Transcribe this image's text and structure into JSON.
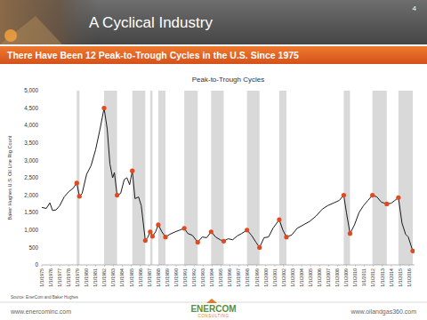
{
  "slide": {
    "title": "A Cyclical Industry",
    "page_number": "4",
    "subtitle": "There Have Been 12 Peak-to-Trough Cycles in the U.S. Since 1975",
    "source": "Source: EnerCom and Baker Hughes",
    "footer_left": "www.enercominc.com",
    "footer_right": "www.oilandgas360.com",
    "logo": "ENERCOM",
    "logo_sub": "CONSULTING"
  },
  "chart_data": {
    "type": "line",
    "title": "Peak-to-Trough Cycles",
    "y_label": "Baker Hughes U.S. Oil Line Rig Count",
    "x": [
      1975.0,
      1975.5,
      1975.9,
      1976.2,
      1976.6,
      1977.0,
      1977.5,
      1978.0,
      1978.5,
      1978.9,
      1979.2,
      1979.5,
      1980.0,
      1980.5,
      1981.0,
      1981.5,
      1981.95,
      1982.3,
      1982.6,
      1982.9,
      1983.1,
      1983.4,
      1983.8,
      1984.2,
      1984.5,
      1984.8,
      1985.1,
      1985.4,
      1985.8,
      1986.1,
      1986.55,
      1986.8,
      1987.1,
      1987.35,
      1987.7,
      1988.0,
      1988.4,
      1988.8,
      1989.3,
      1989.9,
      1990.4,
      1990.9,
      1991.3,
      1991.8,
      1992.4,
      1992.9,
      1993.4,
      1993.9,
      1994.4,
      1994.9,
      1995.3,
      1995.8,
      1996.3,
      1996.8,
      1997.3,
      1997.9,
      1998.4,
      1998.9,
      1999.3,
      1999.8,
      2000.3,
      2000.8,
      2001.5,
      2001.9,
      2002.3,
      2002.9,
      2003.5,
      2004.2,
      2004.9,
      2005.6,
      2006.3,
      2006.9,
      2007.6,
      2008.2,
      2008.7,
      2009.0,
      2009.4,
      2009.9,
      2010.4,
      2010.9,
      2011.4,
      2011.9,
      2012.4,
      2012.9,
      2013.5,
      2014.0,
      2014.4,
      2014.8,
      2015.2,
      2015.6,
      2015.9,
      2016.4
    ],
    "series": [
      {
        "type": "line",
        "color": "#1a1a1a",
        "line_style": "solid",
        "values": [
          1650,
          1620,
          1780,
          1560,
          1580,
          1700,
          1950,
          2100,
          2200,
          2350,
          1970,
          2050,
          2600,
          2850,
          3300,
          3900,
          4500,
          3900,
          2900,
          2500,
          2650,
          2000,
          2050,
          2450,
          2500,
          2300,
          2700,
          1900,
          1950,
          1700,
          700,
          780,
          950,
          820,
          950,
          1150,
          950,
          800,
          880,
          950,
          1000,
          1050,
          900,
          850,
          650,
          800,
          780,
          950,
          800,
          720,
          680,
          750,
          720,
          830,
          900,
          1000,
          850,
          650,
          500,
          780,
          800,
          1050,
          1300,
          1000,
          800,
          860,
          1050,
          1150,
          1250,
          1400,
          1600,
          1700,
          1780,
          1850,
          2000,
          1500,
          900,
          1150,
          1500,
          1700,
          1850,
          2000,
          1950,
          1800,
          1750,
          1770,
          1850,
          1930,
          1200,
          880,
          800,
          400
        ]
      },
      {
        "type": "scatter",
        "color": "#e2491e",
        "marker": "circle",
        "x": [
          1978.9,
          1979.2,
          1981.95,
          1983.4,
          1985.1,
          1986.55,
          1987.1,
          1987.35,
          1988.0,
          1988.8,
          1990.9,
          1992.4,
          1993.9,
          1995.3,
          1997.9,
          1999.3,
          2001.5,
          2002.3,
          2008.7,
          2009.4,
          2011.9,
          2013.5,
          2014.8,
          2016.4
        ],
        "values": [
          2350,
          1970,
          4500,
          2000,
          2700,
          700,
          950,
          820,
          1150,
          800,
          1050,
          650,
          950,
          680,
          1000,
          500,
          1300,
          800,
          2000,
          900,
          2000,
          1750,
          1930,
          400
        ]
      }
    ],
    "shaded_periods": [
      [
        1978.9,
        1979.2
      ],
      [
        1981.95,
        1983.4
      ],
      [
        1985.1,
        1986.55
      ],
      [
        1987.1,
        1987.35
      ],
      [
        1988.0,
        1988.8
      ],
      [
        1990.9,
        1992.4
      ],
      [
        1993.9,
        1995.3
      ],
      [
        1997.9,
        1999.3
      ],
      [
        2001.5,
        2002.3
      ],
      [
        2008.7,
        2009.4
      ],
      [
        2011.9,
        2013.5
      ],
      [
        2014.8,
        2016.4
      ]
    ],
    "xlim": [
      1975,
      2016.6
    ],
    "xticks": [
      {
        "value": 1975,
        "label": "1/1/1975"
      },
      {
        "value": 1976,
        "label": "1/1/1976"
      },
      {
        "value": 1977,
        "label": "1/1/1977"
      },
      {
        "value": 1978,
        "label": "1/1/1978"
      },
      {
        "value": 1979,
        "label": "1/1/1979"
      },
      {
        "value": 1980,
        "label": "1/1/1980"
      },
      {
        "value": 1981,
        "label": "1/1/1981"
      },
      {
        "value": 1982,
        "label": "1/1/1982"
      },
      {
        "value": 1983,
        "label": "1/1/1983"
      },
      {
        "value": 1984,
        "label": "1/1/1984"
      },
      {
        "value": 1985,
        "label": "1/1/1985"
      },
      {
        "value": 1986,
        "label": "1/1/1986"
      },
      {
        "value": 1987,
        "label": "1/1/1987"
      },
      {
        "value": 1988,
        "label": "1/1/1988"
      },
      {
        "value": 1989,
        "label": "1/1/1989"
      },
      {
        "value": 1990,
        "label": "1/1/1990"
      },
      {
        "value": 1991,
        "label": "1/1/1991"
      },
      {
        "value": 1992,
        "label": "1/1/1992"
      },
      {
        "value": 1993,
        "label": "1/1/1993"
      },
      {
        "value": 1994,
        "label": "1/1/1994"
      },
      {
        "value": 1995,
        "label": "1/1/1995"
      },
      {
        "value": 1996,
        "label": "1/1/1996"
      },
      {
        "value": 1997,
        "label": "1/1/1997"
      },
      {
        "value": 1998,
        "label": "1/1/1998"
      },
      {
        "value": 1999,
        "label": "1/1/1999"
      },
      {
        "value": 2000,
        "label": "1/1/2000"
      },
      {
        "value": 2001,
        "label": "1/1/2001"
      },
      {
        "value": 2002,
        "label": "1/1/2002"
      },
      {
        "value": 2003,
        "label": "1/1/2003"
      },
      {
        "value": 2004,
        "label": "1/1/2004"
      },
      {
        "value": 2005,
        "label": "1/1/2005"
      },
      {
        "value": 2006,
        "label": "1/1/2006"
      },
      {
        "value": 2007,
        "label": "1/1/2007"
      },
      {
        "value": 2008,
        "label": "1/1/2008"
      },
      {
        "value": 2009,
        "label": "1/1/2009"
      },
      {
        "value": 2010,
        "label": "1/1/2010"
      },
      {
        "value": 2011,
        "label": "1/1/2011"
      },
      {
        "value": 2012,
        "label": "1/1/2012"
      },
      {
        "value": 2013,
        "label": "1/1/2013"
      },
      {
        "value": 2014,
        "label": "1/1/2014"
      },
      {
        "value": 2015,
        "label": "1/1/2015"
      },
      {
        "value": 2016,
        "label": "1/1/2016"
      }
    ],
    "ylim": [
      0,
      5000
    ],
    "yticks": [
      0,
      500,
      {
        "value": 1000,
        "label": "1,000"
      },
      {
        "value": 1500,
        "label": "1,500"
      },
      {
        "value": 2000,
        "label": "2,000"
      },
      {
        "value": 2500,
        "label": "2,500"
      },
      {
        "value": 3000,
        "label": "3,000"
      },
      {
        "value": 3500,
        "label": "3,500"
      },
      {
        "value": 4000,
        "label": "4,000"
      },
      {
        "value": 4500,
        "label": "4,500"
      },
      {
        "value": 5000,
        "label": "5,000"
      }
    ],
    "grid": false
  }
}
